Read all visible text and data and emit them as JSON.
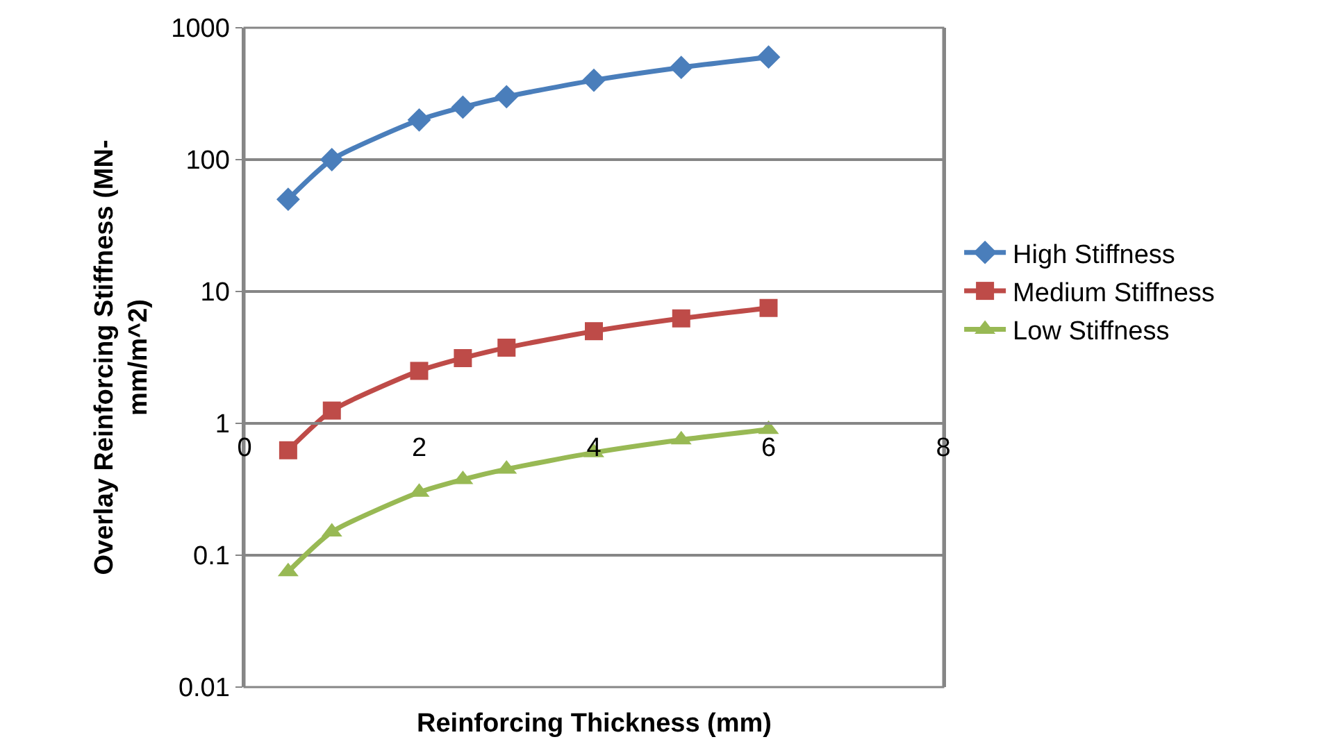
{
  "chart_data": {
    "type": "line",
    "xlabel": "Reinforcing Thickness (mm)",
    "ylabel": "Overlay Reinforcing Stiffness (MN-mm/m^2)",
    "x": [
      0.5,
      1,
      2,
      2.5,
      3,
      4,
      5,
      6
    ],
    "series": [
      {
        "name": "High Stiffness",
        "color": "#4a7ebb",
        "marker": "diamond",
        "values": [
          50,
          100,
          200,
          250,
          300,
          400,
          500,
          600
        ]
      },
      {
        "name": "Medium Stiffness",
        "color": "#be4b48",
        "marker": "square",
        "values": [
          0.625,
          1.25,
          2.5,
          3.125,
          3.75,
          5,
          6.25,
          7.5
        ]
      },
      {
        "name": "Low Stiffness",
        "color": "#98b954",
        "marker": "triangle",
        "values": [
          0.075,
          0.15,
          0.3,
          0.375,
          0.45,
          0.6,
          0.75,
          0.9
        ]
      }
    ],
    "log": "y",
    "xlim": [
      0,
      8
    ],
    "xticks": [
      0,
      2,
      4,
      6,
      8
    ],
    "ylim": [
      0.01,
      1000
    ],
    "yticks": [
      0.01,
      0.1,
      1,
      10,
      100,
      1000
    ],
    "grid": "y",
    "legend": "right",
    "line_style": "solid"
  }
}
